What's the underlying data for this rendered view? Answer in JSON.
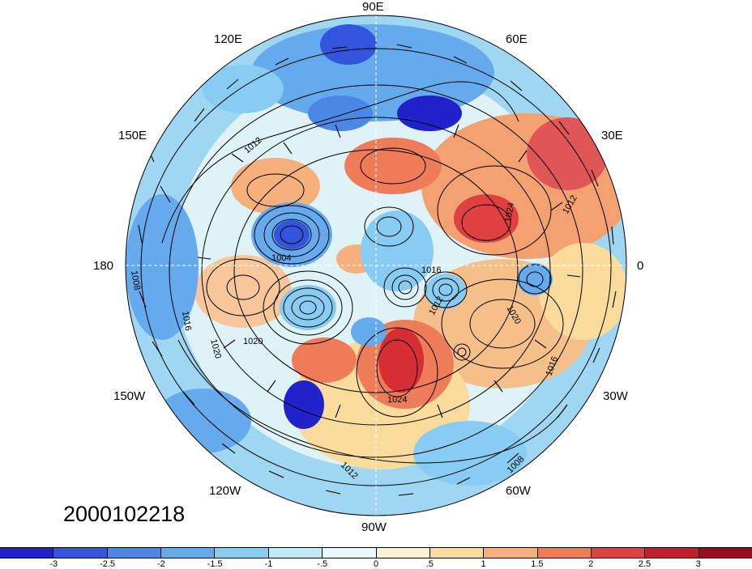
{
  "timestamp": "2000102218",
  "longitude_labels": {
    "e90": "90E",
    "e60": "60E",
    "e30": "30E",
    "zero": "0",
    "w30": "30W",
    "w60": "60W",
    "w90": "90W",
    "w120": "120W",
    "w150": "150W",
    "d180": "180",
    "e150": "150E",
    "e120": "120E"
  },
  "contour_labels": [
    "1012",
    "1004",
    "1008",
    "1016",
    "1020",
    "1020",
    "1024",
    "1012",
    "1016",
    "1020",
    "1016",
    "1024",
    "1008",
    "1012",
    "1012"
  ],
  "colorbar": {
    "colors": [
      "#2222cc",
      "#3355dd",
      "#4b88e6",
      "#66aaee",
      "#88ccf3",
      "#bfeaf7",
      "#e8f7f9",
      "#fbf2d2",
      "#f9dc9c",
      "#f5b07c",
      "#ee7c58",
      "#e04040",
      "#c31d2c",
      "#9a0a1c"
    ],
    "tick_labels": [
      "-3",
      "-2.5",
      "-2",
      "-1.5",
      "-1",
      "-.5",
      "0",
      ".5",
      "1",
      "1.5",
      "2",
      "2.5",
      "3"
    ]
  }
}
